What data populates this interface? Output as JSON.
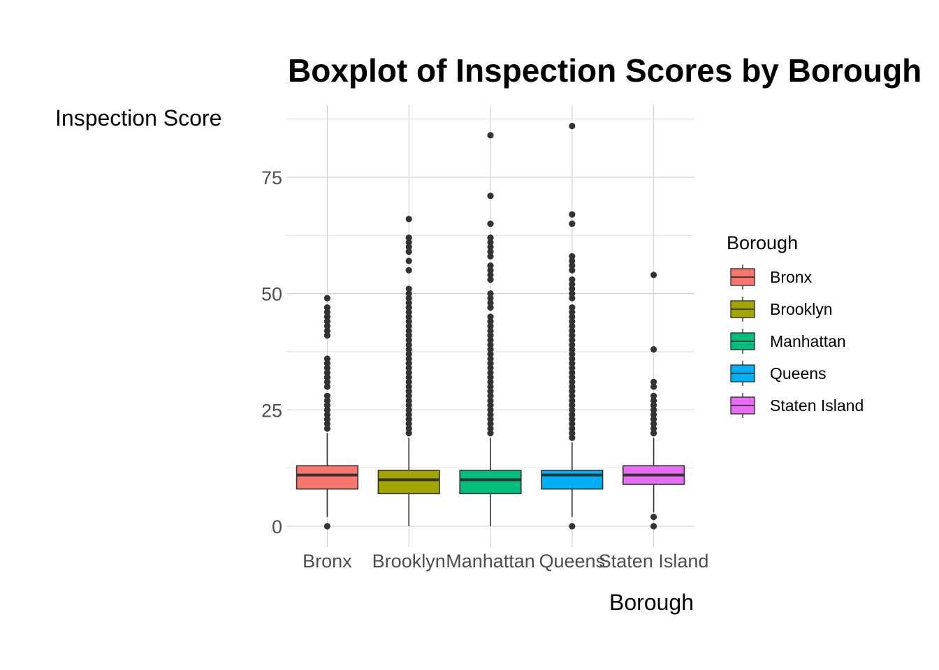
{
  "chart_data": {
    "type": "boxplot",
    "title": "Boxplot of Inspection Scores by Borough",
    "xlabel": "Borough",
    "ylabel": "Inspection Score",
    "ylim": [
      -4,
      92
    ],
    "yticks": [
      0,
      25,
      50,
      75
    ],
    "grid": true,
    "legend": {
      "title": "Borough",
      "placement": "right"
    },
    "categories": [
      "Bronx",
      "Brooklyn",
      "Manhattan",
      "Queens",
      "Staten Island"
    ],
    "series": [
      {
        "name": "Bronx",
        "color": "#F8766D",
        "q1": 8,
        "median": 11,
        "q3": 13,
        "whisker_low": 2,
        "whisker_high": 20,
        "outliers": [
          0,
          21,
          22,
          23,
          24,
          25,
          26,
          27,
          28,
          30,
          31,
          32,
          33,
          34,
          35,
          36,
          41,
          42,
          43,
          44,
          45,
          46,
          47,
          49
        ]
      },
      {
        "name": "Brooklyn",
        "color": "#A3A500",
        "q1": 7,
        "median": 10,
        "q3": 12,
        "whisker_low": 0,
        "whisker_high": 19,
        "outliers": [
          20,
          21,
          22,
          23,
          24,
          25,
          26,
          27,
          28,
          29,
          30,
          31,
          32,
          33,
          34,
          35,
          36,
          37,
          38,
          39,
          40,
          41,
          42,
          43,
          44,
          45,
          46,
          47,
          48,
          49,
          50,
          51,
          55,
          57,
          59,
          60,
          61,
          62,
          66
        ]
      },
      {
        "name": "Manhattan",
        "color": "#00BF7D",
        "q1": 7,
        "median": 10,
        "q3": 12,
        "whisker_low": 0,
        "whisker_high": 19,
        "outliers": [
          20,
          21,
          22,
          23,
          24,
          25,
          26,
          27,
          28,
          29,
          30,
          31,
          32,
          33,
          34,
          35,
          36,
          37,
          38,
          39,
          40,
          41,
          42,
          43,
          44,
          45,
          47,
          48,
          49,
          50,
          53,
          54,
          55,
          56,
          58,
          59,
          60,
          61,
          62,
          65,
          71,
          84
        ]
      },
      {
        "name": "Queens",
        "color": "#00B0F6",
        "q1": 8,
        "median": 11,
        "q3": 12,
        "whisker_low": 2,
        "whisker_high": 18,
        "outliers": [
          0,
          19,
          20,
          21,
          22,
          23,
          24,
          25,
          26,
          27,
          28,
          29,
          30,
          31,
          32,
          33,
          34,
          35,
          36,
          37,
          38,
          39,
          40,
          41,
          42,
          43,
          44,
          45,
          46,
          47,
          49,
          50,
          51,
          52,
          53,
          55,
          56,
          57,
          58,
          65,
          67,
          86
        ]
      },
      {
        "name": "Staten Island",
        "color": "#E76BF3",
        "q1": 9,
        "median": 11,
        "q3": 13,
        "whisker_low": 3,
        "whisker_high": 19,
        "outliers": [
          0,
          2,
          20,
          21,
          22,
          23,
          24,
          25,
          26,
          27,
          28,
          30,
          31,
          38,
          54
        ]
      }
    ]
  }
}
